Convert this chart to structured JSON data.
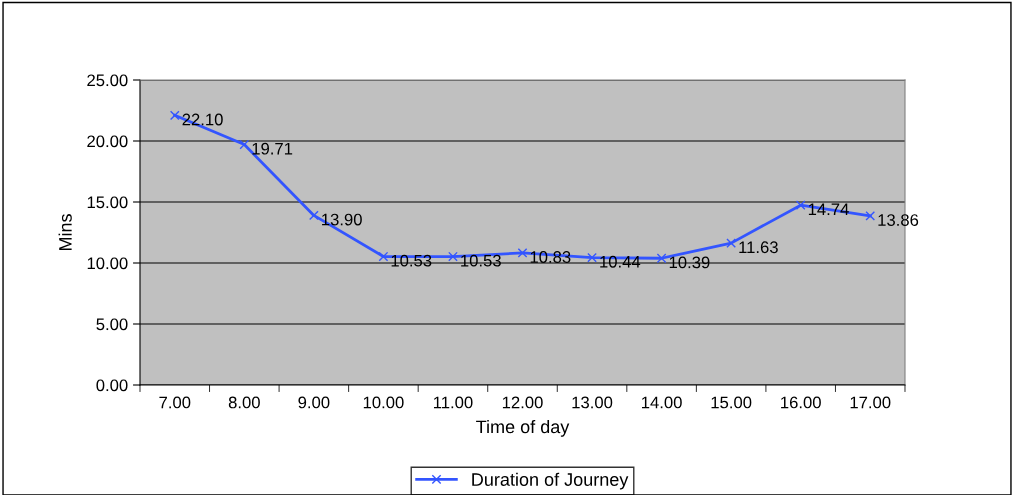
{
  "chart_data": {
    "type": "line",
    "xlabel": "Time of day",
    "ylabel": "Mins",
    "categories": [
      "7.00",
      "8.00",
      "9.00",
      "10.00",
      "11.00",
      "12.00",
      "13.00",
      "14.00",
      "15.00",
      "16.00",
      "17.00"
    ],
    "series": [
      {
        "name": "Duration of Journey",
        "color": "#3355ff",
        "values": [
          22.1,
          19.71,
          13.9,
          10.53,
          10.53,
          10.83,
          10.44,
          10.39,
          11.63,
          14.74,
          13.86
        ],
        "value_labels": [
          "22.10",
          "19.71",
          "13.90",
          "10.53",
          "10.53",
          "10.83",
          "10.44",
          "10.39",
          "11.63",
          "14.74",
          "13.86"
        ]
      }
    ],
    "ylim": [
      0,
      25
    ],
    "yticks": [
      {
        "value": 0,
        "label": "0.00"
      },
      {
        "value": 5,
        "label": "5.00"
      },
      {
        "value": 10,
        "label": "10.00"
      },
      {
        "value": 15,
        "label": "15.00"
      },
      {
        "value": 20,
        "label": "20.00"
      },
      {
        "value": 25,
        "label": "25.00"
      }
    ],
    "grid": "y",
    "legend": "bottom",
    "marker": "cross",
    "line_style": "solid"
  }
}
